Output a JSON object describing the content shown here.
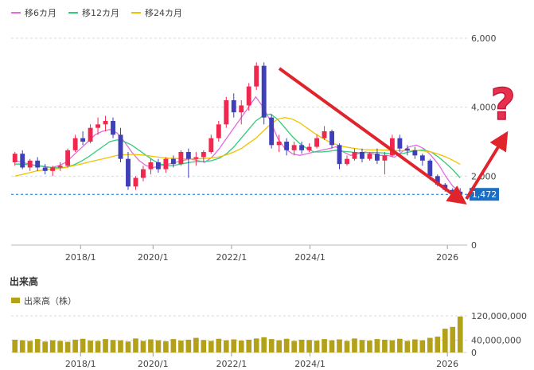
{
  "legend": {
    "items": [
      {
        "label": "移6カ月",
        "color": "#e36ae0"
      },
      {
        "label": "移12カ月",
        "color": "#33cc77"
      },
      {
        "label": "移24カ月",
        "color": "#f2c200"
      }
    ]
  },
  "volume_section": {
    "title": "出来高",
    "legend_label": "出来高（株）",
    "color": "#b3a11a"
  },
  "current_price": {
    "label": "1,472",
    "value": 1472
  },
  "colors": {
    "up": "#f02850",
    "down": "#3f3fb8",
    "grid": "#d9d9d9",
    "annotation": "#e0242c",
    "current_price_badge": "#1a6fc4"
  },
  "annotations": {
    "arrows": [
      "down-trend-arrow",
      "up-reversal-arrow"
    ],
    "question_mark_icon": "?"
  },
  "chart_data": [
    {
      "type": "candlestick",
      "title": "",
      "x_ticks": [
        "2018/1",
        "2020/1",
        "2022/1",
        "2024/1",
        "2026"
      ],
      "y_ticks": [
        0,
        2000,
        4000,
        6000
      ],
      "y_tick_labels": [
        "0",
        "2,000",
        "4,000",
        "6,000"
      ],
      "ylim": [
        0,
        6000
      ],
      "grid": true,
      "moving_averages": [
        {
          "name": "移6カ月",
          "values": [
            2450,
            2400,
            2350,
            2300,
            2280,
            2250,
            2300,
            2400,
            2600,
            2800,
            3000,
            3200,
            3300,
            3350,
            3250,
            3000,
            2700,
            2450,
            2300,
            2250,
            2300,
            2350,
            2400,
            2450,
            2500,
            2450,
            2400,
            2550,
            2800,
            3100,
            3400,
            3700,
            4000,
            4300,
            4000,
            3600,
            3100,
            2800,
            2650,
            2600,
            2650,
            2700,
            2750,
            2800,
            2850,
            2700,
            2600,
            2650,
            2700,
            2650,
            2600,
            2600,
            2550,
            2700,
            2850,
            2900,
            2800,
            2600,
            2350,
            2000,
            1700,
            1550
          ]
        },
        {
          "name": "移12カ月",
          "values": [
            2350,
            2350,
            2330,
            2300,
            2280,
            2250,
            2240,
            2260,
            2320,
            2420,
            2550,
            2700,
            2850,
            3000,
            3050,
            3000,
            2900,
            2750,
            2600,
            2450,
            2350,
            2300,
            2320,
            2360,
            2400,
            2420,
            2420,
            2450,
            2520,
            2650,
            2850,
            3100,
            3350,
            3600,
            3750,
            3800,
            3650,
            3400,
            3150,
            2950,
            2800,
            2700,
            2700,
            2720,
            2750,
            2720,
            2700,
            2680,
            2680,
            2690,
            2680,
            2660,
            2640,
            2650,
            2700,
            2740,
            2760,
            2700,
            2560,
            2380,
            2180,
            1950
          ]
        },
        {
          "name": "移24カ月",
          "values": [
            2000,
            2050,
            2100,
            2150,
            2180,
            2200,
            2220,
            2250,
            2300,
            2350,
            2400,
            2450,
            2500,
            2550,
            2600,
            2620,
            2630,
            2620,
            2600,
            2570,
            2540,
            2520,
            2510,
            2500,
            2500,
            2500,
            2510,
            2530,
            2560,
            2620,
            2700,
            2800,
            2950,
            3100,
            3300,
            3500,
            3650,
            3700,
            3650,
            3550,
            3400,
            3250,
            3120,
            3000,
            2920,
            2860,
            2820,
            2790,
            2770,
            2760,
            2760,
            2750,
            2740,
            2740,
            2740,
            2740,
            2730,
            2700,
            2640,
            2560,
            2460,
            2340
          ]
        }
      ],
      "ohlc": [
        [
          2400,
          2700,
          2300,
          2650
        ],
        [
          2650,
          2750,
          2200,
          2250
        ],
        [
          2250,
          2500,
          2150,
          2450
        ],
        [
          2450,
          2550,
          2150,
          2250
        ],
        [
          2250,
          2350,
          2050,
          2150
        ],
        [
          2150,
          2300,
          2000,
          2250
        ],
        [
          2250,
          2400,
          2150,
          2300
        ],
        [
          2300,
          2800,
          2250,
          2750
        ],
        [
          2750,
          3200,
          2700,
          3100
        ],
        [
          3100,
          3300,
          2900,
          3000
        ],
        [
          3000,
          3500,
          2950,
          3400
        ],
        [
          3400,
          3700,
          3200,
          3500
        ],
        [
          3500,
          3750,
          3300,
          3600
        ],
        [
          3600,
          3700,
          3100,
          3200
        ],
        [
          3200,
          3400,
          2400,
          2500
        ],
        [
          2500,
          2700,
          1600,
          1700
        ],
        [
          1700,
          2000,
          1600,
          1950
        ],
        [
          1950,
          2300,
          1850,
          2200
        ],
        [
          2200,
          2500,
          2050,
          2400
        ],
        [
          2400,
          2500,
          2100,
          2200
        ],
        [
          2200,
          2550,
          2100,
          2500
        ],
        [
          2500,
          2600,
          2250,
          2350
        ],
        [
          2350,
          2750,
          2300,
          2700
        ],
        [
          2700,
          2800,
          1950,
          2500
        ],
        [
          2500,
          2700,
          2300,
          2550
        ],
        [
          2550,
          2750,
          2400,
          2700
        ],
        [
          2700,
          3200,
          2650,
          3100
        ],
        [
          3100,
          3600,
          3000,
          3500
        ],
        [
          3500,
          4300,
          3400,
          4200
        ],
        [
          4200,
          4400,
          3700,
          3850
        ],
        [
          3850,
          4200,
          3500,
          4050
        ],
        [
          4050,
          4700,
          3900,
          4600
        ],
        [
          4600,
          5300,
          4500,
          5200
        ],
        [
          5200,
          5300,
          3500,
          3700
        ],
        [
          3700,
          3800,
          2800,
          2900
        ],
        [
          2900,
          3200,
          2700,
          3000
        ],
        [
          3000,
          3100,
          2600,
          2750
        ],
        [
          2750,
          3000,
          2600,
          2900
        ],
        [
          2900,
          3000,
          2650,
          2750
        ],
        [
          2750,
          2950,
          2700,
          2850
        ],
        [
          2850,
          3200,
          2800,
          3100
        ],
        [
          3100,
          3450,
          3050,
          3300
        ],
        [
          3300,
          3350,
          2800,
          2900
        ],
        [
          2900,
          2950,
          2200,
          2350
        ],
        [
          2350,
          2600,
          2300,
          2500
        ],
        [
          2500,
          2800,
          2450,
          2700
        ],
        [
          2700,
          2800,
          2400,
          2500
        ],
        [
          2500,
          2700,
          2450,
          2650
        ],
        [
          2650,
          2800,
          2350,
          2450
        ],
        [
          2450,
          2700,
          2050,
          2600
        ],
        [
          2600,
          3200,
          2550,
          3100
        ],
        [
          3100,
          3200,
          2700,
          2800
        ],
        [
          2800,
          2900,
          2600,
          2750
        ],
        [
          2750,
          2850,
          2500,
          2600
        ],
        [
          2600,
          2650,
          2300,
          2450
        ],
        [
          2450,
          2500,
          1900,
          2000
        ],
        [
          2000,
          2050,
          1700,
          1750
        ],
        [
          1750,
          1800,
          1550,
          1600
        ],
        [
          1600,
          1650,
          1450,
          1550
        ],
        [
          1550,
          1650,
          1420,
          1472
        ]
      ]
    },
    {
      "type": "bar",
      "title": "出来高",
      "series": [
        {
          "name": "出来高（株）",
          "values": [
            42,
            40,
            38,
            44,
            36,
            40,
            38,
            35,
            42,
            45,
            39,
            38,
            44,
            41,
            40,
            36,
            46,
            38,
            43,
            40,
            37,
            44,
            39,
            42,
            48,
            41,
            38,
            45,
            40,
            43,
            39,
            42,
            46,
            50,
            44,
            40,
            45,
            38,
            42,
            41,
            39,
            44,
            40,
            43,
            38,
            46,
            41,
            39,
            44,
            42,
            40,
            45,
            38,
            43,
            40,
            48,
            52,
            78,
            84,
            118
          ]
        }
      ],
      "y_ticks": [
        0,
        40000000,
        120000000
      ],
      "y_tick_labels": [
        "0",
        "40,000,000",
        "120,000,000"
      ],
      "ylim": [
        0,
        120000000
      ],
      "units": "million",
      "x_ticks": [
        "2018/1",
        "2020/1",
        "2022/1",
        "2024/1",
        "2026"
      ]
    }
  ]
}
